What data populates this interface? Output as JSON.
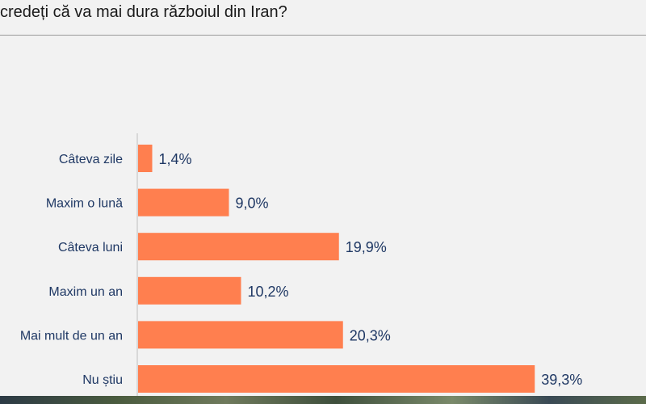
{
  "title": "credeți că va mai dura războiul din Iran?",
  "colors": {
    "bar": "#ff7f4f",
    "label": "#1f3864",
    "axis": "#bfbfbf",
    "background": "#f2f2f2"
  },
  "chart_data": {
    "type": "bar",
    "orientation": "horizontal",
    "title": "credeți că va mai dura războiul din Iran?",
    "categories": [
      "Câteva zile",
      "Maxim o lună",
      "Câteva luni",
      "Maxim un an",
      "Mai mult de un an",
      "Nu știu"
    ],
    "values": [
      1.4,
      9.0,
      19.9,
      10.2,
      20.3,
      39.3
    ],
    "value_labels": [
      "1,4%",
      "9,0%",
      "19,9%",
      "10,2%",
      "20,3%",
      "39,3%"
    ],
    "unit": "%",
    "xlim": [
      0,
      40
    ],
    "grid": false,
    "legend": "none"
  }
}
